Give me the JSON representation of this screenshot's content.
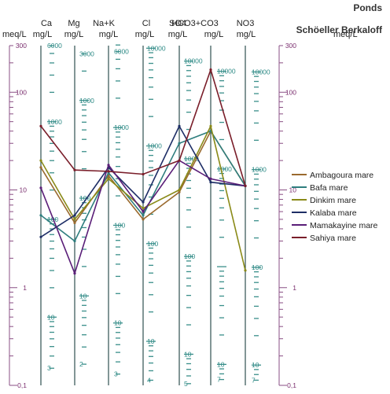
{
  "chart_data": {
    "type": "line",
    "title": "Ponds",
    "subtitle": "Schöeller Berkaloff",
    "left_unit": "meq/L",
    "right_unit": "meq/L",
    "yscale": "log",
    "ylim": [
      0.1,
      300
    ],
    "meq_ticks": [
      {
        "v": 300,
        "label": "300"
      },
      {
        "v": 100,
        "label": "100"
      },
      {
        "v": 10,
        "label": "10"
      },
      {
        "v": 1,
        "label": "1"
      },
      {
        "v": 0.1,
        "label": "0,1"
      }
    ],
    "axes": [
      {
        "name": "Ca",
        "unit": "mg/L",
        "factor": 20.04,
        "labels": [
          {
            "v": 6000,
            "t": "6000"
          },
          {
            "v": 1000,
            "t": "1000"
          },
          {
            "v": 100,
            "t": "100"
          },
          {
            "v": 10,
            "t": "10"
          },
          {
            "v": 3,
            "t": "3"
          }
        ]
      },
      {
        "name": "Mg",
        "unit": "mg/L",
        "factor": 12.15,
        "labels": [
          {
            "v": 3000,
            "t": "3000"
          },
          {
            "v": 1000,
            "t": "1000"
          },
          {
            "v": 100,
            "t": "100"
          },
          {
            "v": 10,
            "t": "10"
          },
          {
            "v": 2,
            "t": "2"
          }
        ]
      },
      {
        "name": "Na+K",
        "unit": "mg/L",
        "factor": 23.0,
        "labels": [
          {
            "v": 6000,
            "t": "6000"
          },
          {
            "v": 1000,
            "t": "1000"
          },
          {
            "v": 100,
            "t": "100"
          },
          {
            "v": 10,
            "t": "10"
          },
          {
            "v": 3,
            "t": "3"
          }
        ]
      },
      {
        "name": "Cl",
        "unit": "mg/L",
        "factor": 35.45,
        "labels": [
          {
            "v": 10000,
            "t": "10000"
          },
          {
            "v": 1000,
            "t": "1000"
          },
          {
            "v": 100,
            "t": "100"
          },
          {
            "v": 10,
            "t": "10"
          },
          {
            "v": 4,
            "t": "4"
          }
        ]
      },
      {
        "name": "SO4",
        "unit": "mg/L",
        "factor": 48.03,
        "labels": [
          {
            "v": 10000,
            "t": "10000"
          },
          {
            "v": 1000,
            "t": "1000"
          },
          {
            "v": 100,
            "t": "100"
          },
          {
            "v": 10,
            "t": "10"
          },
          {
            "v": 5,
            "t": "5"
          }
        ]
      },
      {
        "name": "HCO3+CO3",
        "unit": "mg/L",
        "factor": 61.02,
        "labels": [
          {
            "v": 10000,
            "t": "10000"
          },
          {
            "v": 1000,
            "t": "1000"
          },
          {
            "v": 10,
            "t": "10"
          },
          {
            "v": 7,
            "t": "7"
          }
        ]
      },
      {
        "name": "NO3",
        "unit": "mg/L",
        "factor": 62.0,
        "labels": [
          {
            "v": 10000,
            "t": "10000"
          },
          {
            "v": 1000,
            "t": "1000"
          },
          {
            "v": 100,
            "t": "100"
          },
          {
            "v": 10,
            "t": "10"
          },
          {
            "v": 7,
            "t": "7"
          }
        ]
      }
    ],
    "legend_position": "right",
    "series": [
      {
        "name": "Ambagoura mare",
        "color": "#9a6a2e",
        "values": [
          17,
          4.6,
          14,
          5.0,
          9.5,
          40,
          11
        ]
      },
      {
        "name": "Bafa mare",
        "color": "#2e7e7e",
        "values": [
          5.5,
          3.0,
          15,
          5.5,
          30,
          40,
          11
        ]
      },
      {
        "name": "Dinkim mare",
        "color": "#8a8a18",
        "values": [
          20,
          5.0,
          13,
          6.5,
          10,
          45,
          1.5
        ]
      },
      {
        "name": "Kalaba mare",
        "color": "#1e2e66",
        "values": [
          3.3,
          5.5,
          17,
          7.5,
          45,
          12,
          11
        ]
      },
      {
        "name": "Mamakayine mare",
        "color": "#5a1e78",
        "values": [
          10.5,
          1.4,
          18,
          6.0,
          20,
          13,
          11
        ]
      },
      {
        "name": "Sahiya mare",
        "color": "#7a1e2a",
        "values": [
          45,
          16,
          15.5,
          14.5,
          20,
          170,
          11
        ]
      }
    ]
  }
}
